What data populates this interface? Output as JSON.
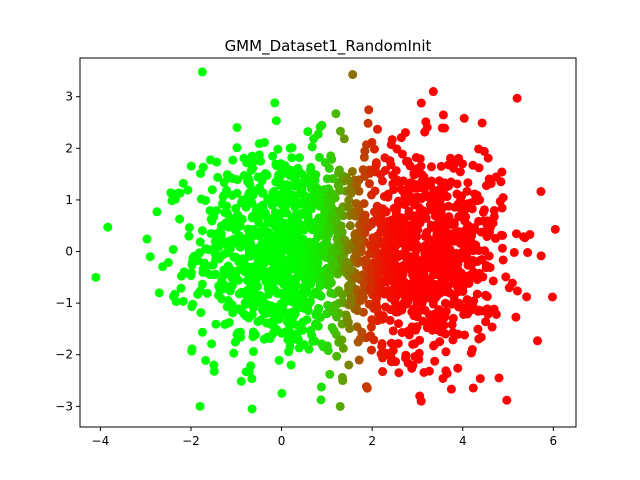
{
  "chart_data": {
    "type": "scatter",
    "title": "GMM_Dataset1_RandomInit",
    "xlabel": "",
    "ylabel": "",
    "xlim": [
      -4.45,
      6.5
    ],
    "ylim": [
      -3.4,
      3.75
    ],
    "x_ticks": [
      -4,
      -2,
      0,
      2,
      4,
      6
    ],
    "x_tick_labels": [
      "−4",
      "−2",
      "0",
      "2",
      "4",
      "6"
    ],
    "y_ticks": [
      -3,
      -2,
      -1,
      0,
      1,
      2,
      3
    ],
    "y_tick_labels": [
      "−3",
      "−2",
      "−1",
      "0",
      "1",
      "2",
      "3"
    ],
    "grid": false,
    "legend": "none",
    "colors": {
      "cluster_a": "#00ff00",
      "cluster_b": "#ff0000",
      "point_size_note": "marker"
    },
    "color_mixing": "green for cluster near x=0, red for cluster near x=3, blended olive in overlap near x=1.5",
    "clusters": [
      {
        "center": [
          0,
          0
        ],
        "std": [
          0.95,
          1.0
        ],
        "count": 1000,
        "color": "#00ff00"
      },
      {
        "center": [
          3,
          0
        ],
        "std": [
          0.95,
          1.0
        ],
        "count": 1000,
        "color": "#ff0000"
      }
    ],
    "notable_points": [
      {
        "x": -4.1,
        "y": -0.5,
        "color": "#00ff00"
      },
      {
        "x": -1.75,
        "y": 3.48,
        "color": "#00ff00"
      },
      {
        "x": -1.8,
        "y": -3.0,
        "color": "#00ff00"
      },
      {
        "x": -0.65,
        "y": -3.05,
        "color": "#00ff00"
      },
      {
        "x": -2.9,
        "y": -0.1,
        "color": "#00ff00"
      },
      {
        "x": -2.75,
        "y": 0.77,
        "color": "#00ff00"
      },
      {
        "x": -2.7,
        "y": -0.8,
        "color": "#00ff00"
      },
      {
        "x": -0.15,
        "y": 2.88,
        "color": "#00ff00"
      },
      {
        "x": 3.35,
        "y": 3.1,
        "color": "#ff0000"
      },
      {
        "x": 5.2,
        "y": 2.97,
        "color": "#ff0000"
      },
      {
        "x": 5.98,
        "y": -0.88,
        "color": "#ff0000"
      },
      {
        "x": 3.05,
        "y": -2.8,
        "color": "#ff0000"
      },
      {
        "x": 5.65,
        "y": -1.73,
        "color": "#ff0000"
      },
      {
        "x": 4.8,
        "y": -2.45,
        "color": "#ff0000"
      },
      {
        "x": 1.35,
        "y": -2.5,
        "color": "#6b8a00"
      },
      {
        "x": 1.2,
        "y": 2.67,
        "color": "#6b8a00"
      }
    ]
  }
}
